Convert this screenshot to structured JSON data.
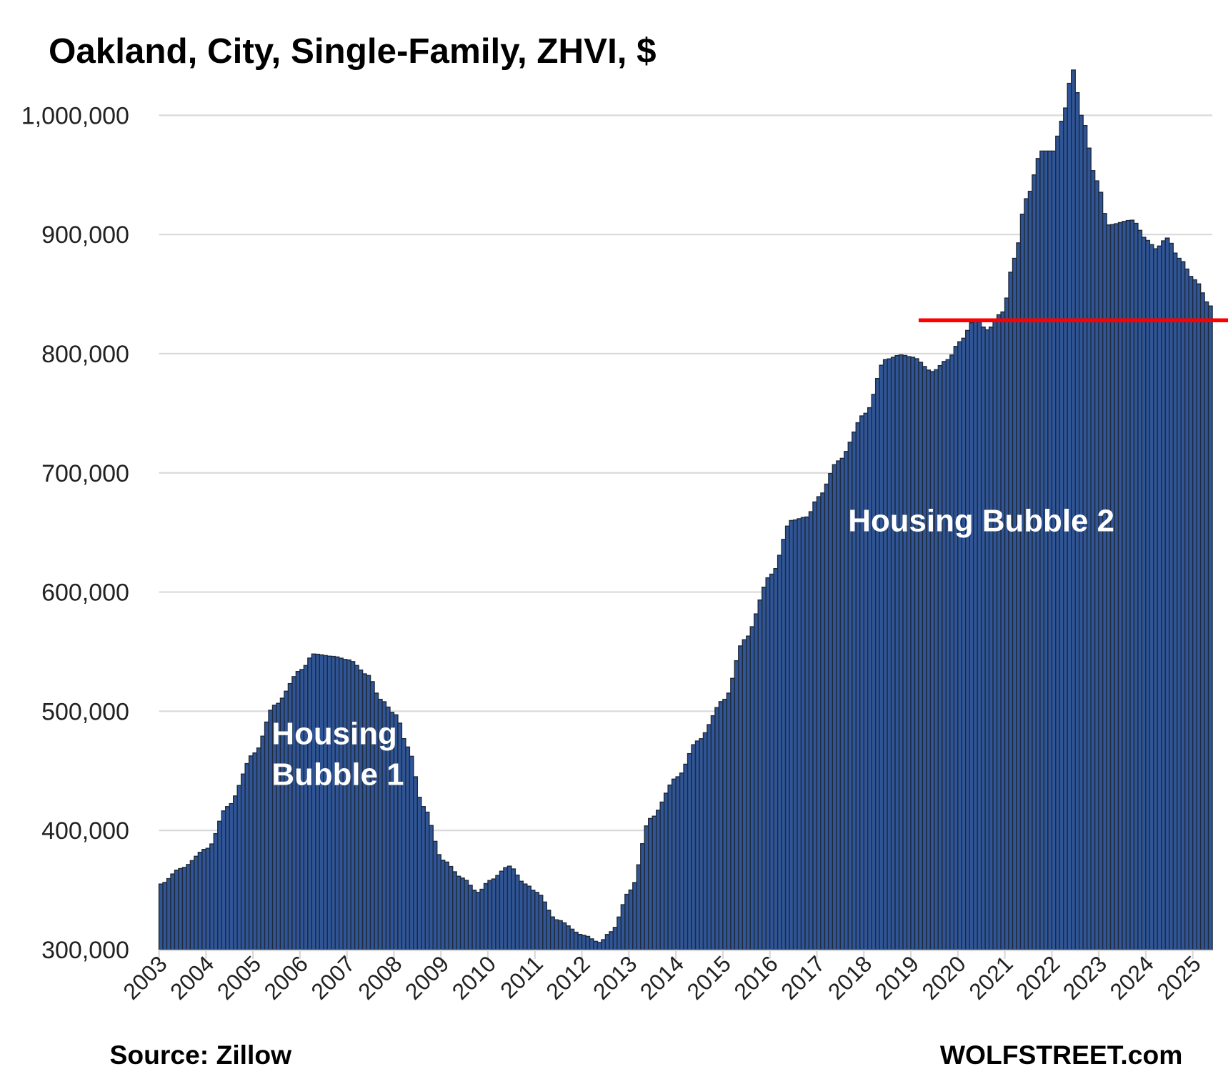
{
  "chart_data": {
    "type": "bar",
    "title": "Oakland, City, Single-Family, ZHVI, $",
    "xlabel": "",
    "ylabel": "",
    "ylim": [
      300000,
      1040000
    ],
    "yticks": [
      300000,
      400000,
      500000,
      600000,
      700000,
      800000,
      900000,
      1000000
    ],
    "ytick_labels": [
      "300,000",
      "400,000",
      "500,000",
      "600,000",
      "700,000",
      "800,000",
      "900,000",
      "1,000,000"
    ],
    "xtick_labels": [
      "2003",
      "2004",
      "2005",
      "2006",
      "2007",
      "2008",
      "2009",
      "2010",
      "2011",
      "2012",
      "2013",
      "2014",
      "2015",
      "2016",
      "2017",
      "2018",
      "2019",
      "2020",
      "2021",
      "2022",
      "2023",
      "2024",
      "2025"
    ],
    "grid": true,
    "frequency": "monthly",
    "start": "2003-01",
    "end": "2025-05",
    "anchor_values": [
      [
        "2003-01",
        355000
      ],
      [
        "2003-06",
        368000
      ],
      [
        "2004-01",
        385000
      ],
      [
        "2004-06",
        420000
      ],
      [
        "2005-01",
        465000
      ],
      [
        "2005-06",
        505000
      ],
      [
        "2006-01",
        535000
      ],
      [
        "2006-04",
        548000
      ],
      [
        "2006-09",
        546000
      ],
      [
        "2007-01",
        543000
      ],
      [
        "2007-06",
        530000
      ],
      [
        "2007-09",
        510000
      ],
      [
        "2008-01",
        497000
      ],
      [
        "2008-04",
        470000
      ],
      [
        "2008-08",
        420000
      ],
      [
        "2009-01",
        375000
      ],
      [
        "2009-06",
        360000
      ],
      [
        "2009-10",
        348000
      ],
      [
        "2010-01",
        358000
      ],
      [
        "2010-06",
        370000
      ],
      [
        "2010-10",
        355000
      ],
      [
        "2011-01",
        348000
      ],
      [
        "2011-06",
        325000
      ],
      [
        "2012-01",
        312000
      ],
      [
        "2012-05",
        306000
      ],
      [
        "2012-08",
        315000
      ],
      [
        "2013-01",
        350000
      ],
      [
        "2013-06",
        410000
      ],
      [
        "2014-01",
        445000
      ],
      [
        "2014-06",
        475000
      ],
      [
        "2015-01",
        510000
      ],
      [
        "2015-06",
        560000
      ],
      [
        "2016-01",
        615000
      ],
      [
        "2016-06",
        660000
      ],
      [
        "2016-10",
        663000
      ],
      [
        "2017-01",
        680000
      ],
      [
        "2017-06",
        710000
      ],
      [
        "2018-01",
        750000
      ],
      [
        "2018-06",
        795000
      ],
      [
        "2018-10",
        799000
      ],
      [
        "2019-01",
        797000
      ],
      [
        "2019-06",
        785000
      ],
      [
        "2019-10",
        795000
      ],
      [
        "2020-01",
        810000
      ],
      [
        "2020-05",
        829000
      ],
      [
        "2020-08",
        820000
      ],
      [
        "2020-12",
        835000
      ],
      [
        "2021-03",
        880000
      ],
      [
        "2021-06",
        930000
      ],
      [
        "2021-10",
        970000
      ],
      [
        "2022-01",
        970000
      ],
      [
        "2022-03",
        995000
      ],
      [
        "2022-06",
        1038000
      ],
      [
        "2022-08",
        1000000
      ],
      [
        "2022-12",
        945000
      ],
      [
        "2023-03",
        908000
      ],
      [
        "2023-09",
        912000
      ],
      [
        "2024-01",
        895000
      ],
      [
        "2024-03",
        888000
      ],
      [
        "2024-06",
        897000
      ],
      [
        "2024-09",
        880000
      ],
      [
        "2025-01",
        862000
      ],
      [
        "2025-05",
        840000
      ]
    ],
    "reference_line": {
      "value": 828000,
      "start": "2019-03",
      "color": "#FF0000"
    },
    "annotations": {
      "bubble1_line1": "Housing",
      "bubble1_line2": "Bubble 1",
      "bubble2": "Housing Bubble 2"
    },
    "colors": {
      "bar_fill": "#2F5597",
      "bar_edge": "#1F2A3A",
      "grid": "#D9D9D9"
    }
  },
  "footer": {
    "source": "Source: Zillow",
    "brand": "WOLFSTREET.com"
  }
}
